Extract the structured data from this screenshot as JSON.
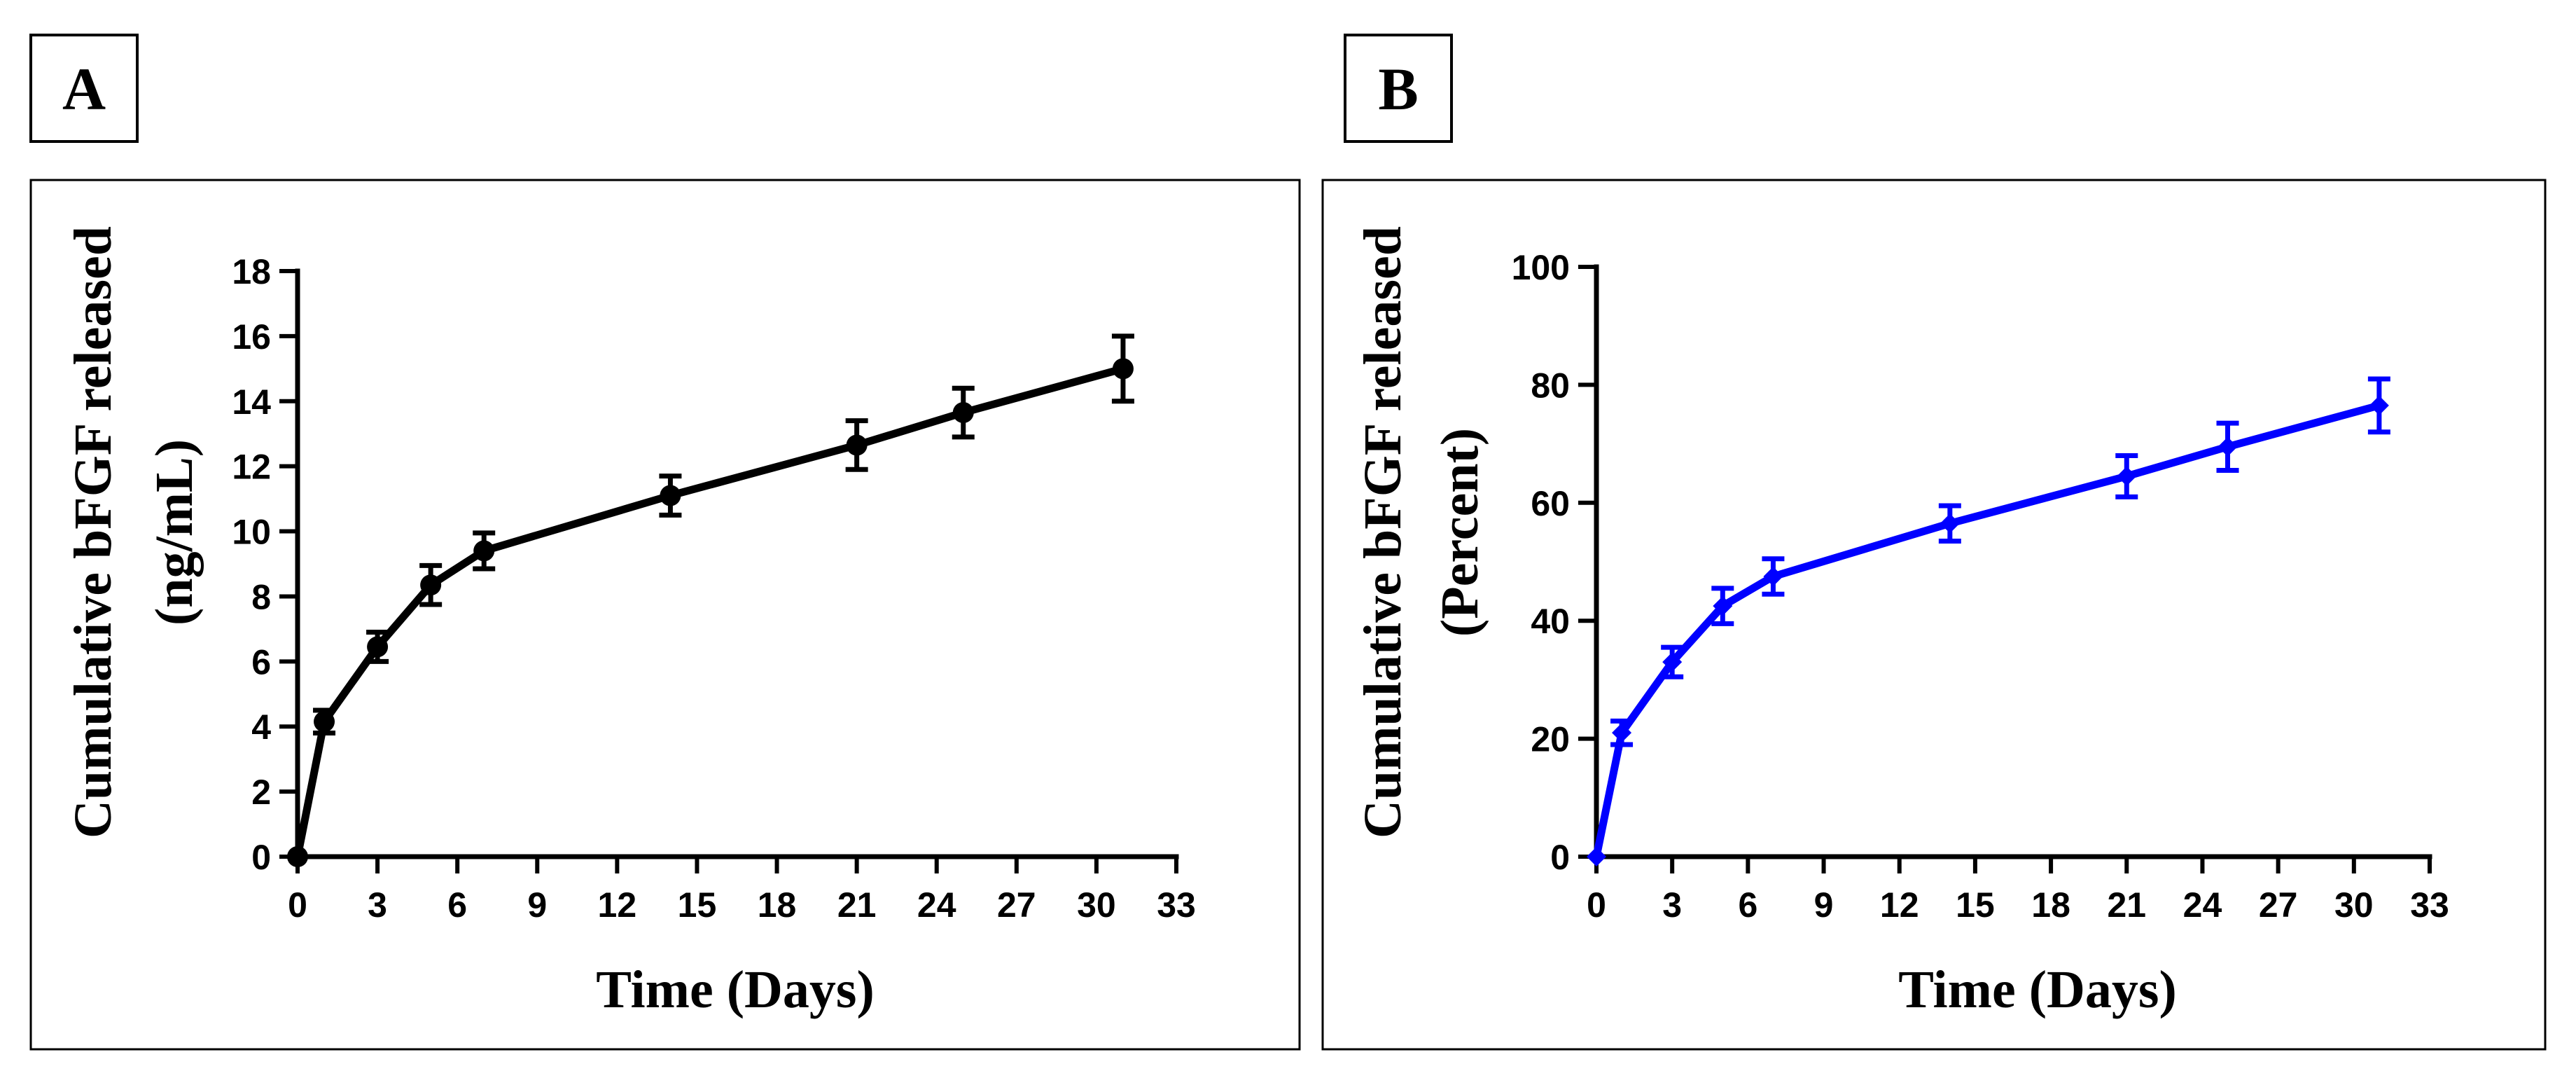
{
  "chart_data": [
    {
      "panel": "A",
      "type": "line",
      "color": "#000000",
      "marker": "circle",
      "xlabel": "Time (Days)",
      "ylabel_line1": "Cumulative bFGF released",
      "ylabel_line2": "(ng/mL)",
      "xlim": [
        0,
        33
      ],
      "ylim": [
        0,
        18
      ],
      "xticks": [
        "0",
        "3",
        "6",
        "9",
        "12",
        "15",
        "18",
        "21",
        "24",
        "27",
        "30",
        "33"
      ],
      "yticks": [
        "0",
        "2",
        "4",
        "6",
        "8",
        "10",
        "12",
        "14",
        "16",
        "18"
      ],
      "x": [
        0,
        1,
        3,
        5,
        7,
        14,
        21,
        25,
        31
      ],
      "values": [
        0,
        4.15,
        6.45,
        8.35,
        9.4,
        11.1,
        12.65,
        13.65,
        15.0
      ],
      "errors": [
        0,
        0.35,
        0.45,
        0.6,
        0.55,
        0.6,
        0.75,
        0.75,
        1.0
      ]
    },
    {
      "panel": "B",
      "type": "line",
      "color": "#0000FF",
      "marker": "diamond",
      "xlabel": "Time (Days)",
      "ylabel_line1": "Cumulative bFGF released",
      "ylabel_line2": "(Percent)",
      "xlim": [
        0,
        33
      ],
      "ylim": [
        0,
        100
      ],
      "xticks": [
        "0",
        "3",
        "6",
        "9",
        "12",
        "15",
        "18",
        "21",
        "24",
        "27",
        "30",
        "33"
      ],
      "yticks": [
        "0",
        "20",
        "40",
        "60",
        "80",
        "100"
      ],
      "x": [
        0,
        1,
        3,
        5,
        7,
        14,
        21,
        25,
        31
      ],
      "values": [
        0,
        21,
        33,
        42.5,
        47.5,
        56.5,
        64.5,
        69.5,
        76.5
      ],
      "errors": [
        0,
        2,
        2.5,
        3,
        3,
        3,
        3.5,
        4,
        4.5
      ]
    }
  ]
}
